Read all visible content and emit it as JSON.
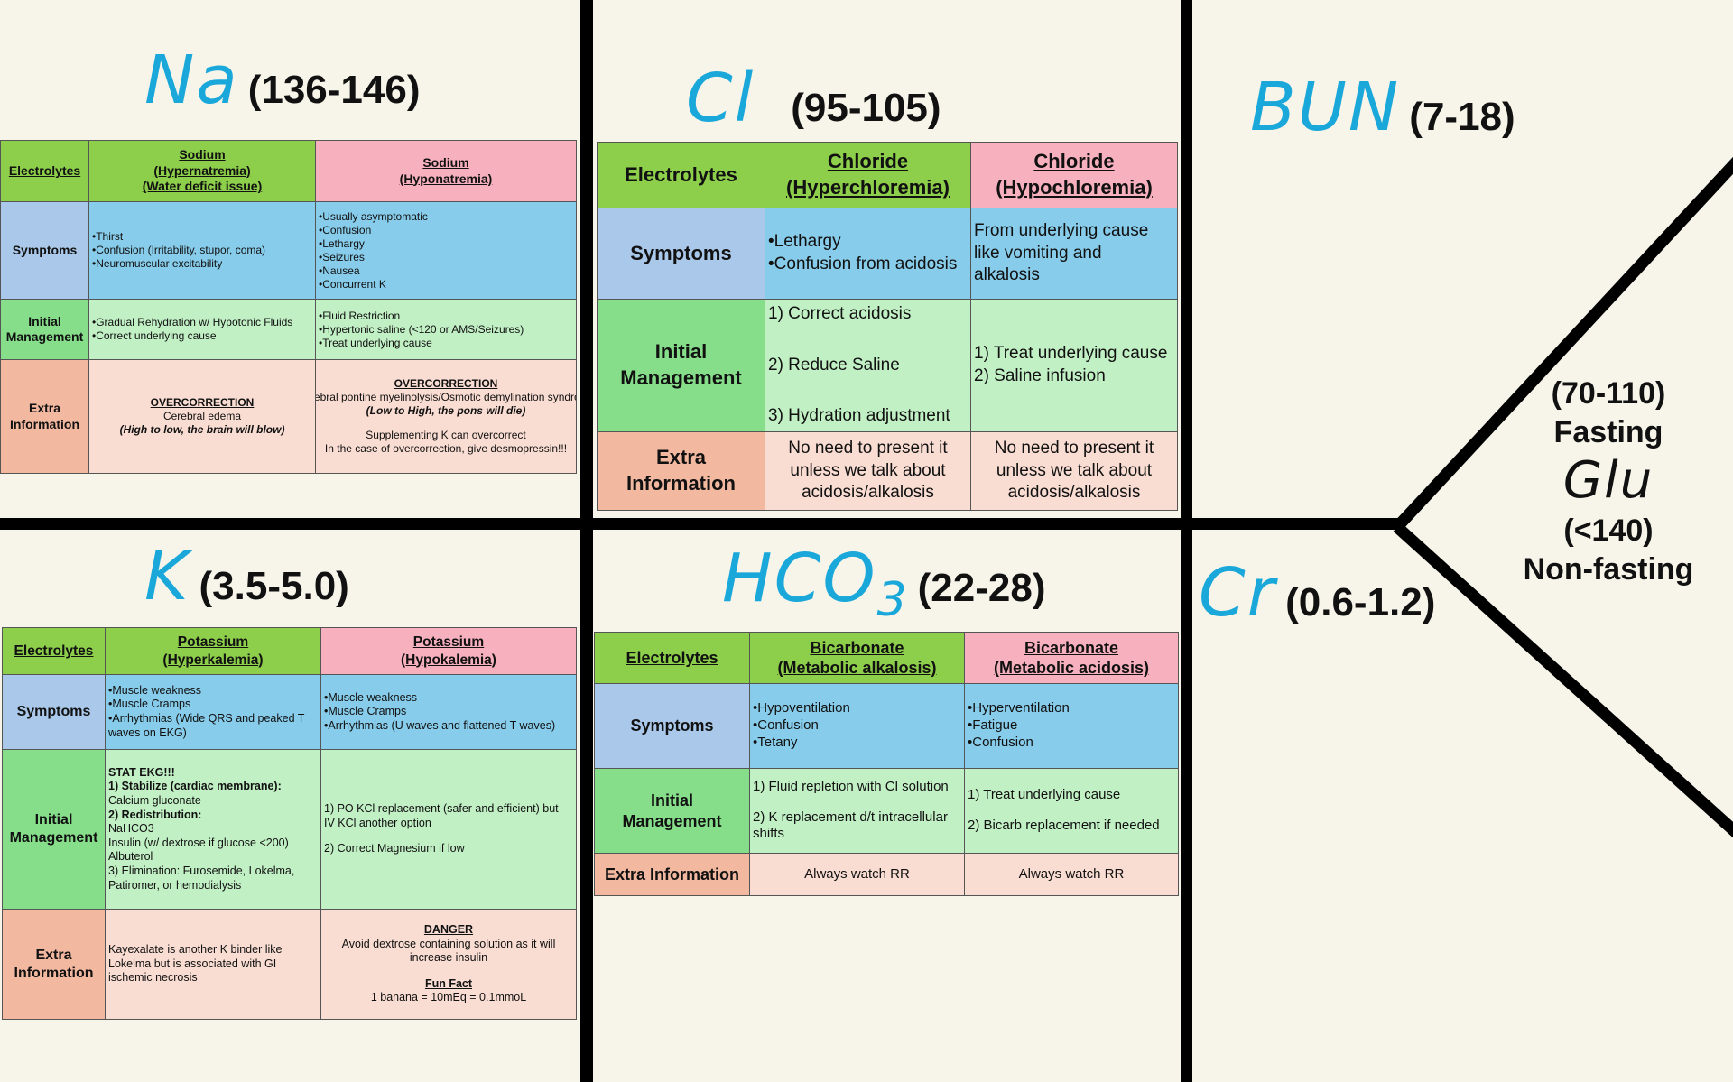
{
  "panels": [
    {
      "symbol": "Na",
      "range": "(136-146)",
      "table": [
        [
          [
            "Electrolytes"
          ],
          [
            "Sodium",
            "(Hypernatremia)",
            "(Water deficit issue)"
          ],
          [
            "Sodium",
            "(Hyponatremia)"
          ]
        ],
        [
          [
            "Symptoms"
          ],
          [
            "•Thirst",
            "•Confusion (Irritability, stupor, coma)",
            "•Neuromuscular excitability"
          ],
          [
            "•Usually asymptomatic",
            "•Confusion",
            "•Lethargy",
            "•Seizures",
            "•Nausea",
            "•Concurrent K"
          ]
        ],
        [
          [
            "Initial",
            "Management"
          ],
          [
            "•Gradual Rehydration w/ Hypotonic Fluids",
            "•Correct underlying cause"
          ],
          [
            "•Fluid Restriction",
            "•Hypertonic saline (<120 or AMS/Seizures)",
            "•Treat underlying cause"
          ]
        ],
        [
          [
            "Extra",
            "Information"
          ],
          [
            "OVERCORRECTION",
            "Cerebral edema",
            "(High to low, the brain will blow)"
          ],
          [
            "OVERCORRECTION",
            "Cerebral pontine myelinolysis/Osmotic demylination syndrome",
            "(Low to High, the pons will die)",
            "Supplementing K can overcorrect",
            "In the case of overcorrection, give desmopressin!!!"
          ]
        ]
      ]
    },
    {
      "symbol": "Cl",
      "range": "(95-105)",
      "table": [
        [
          [
            "Electrolytes"
          ],
          [
            "Chloride",
            "(Hyperchloremia)"
          ],
          [
            "Chloride",
            "(Hypochloremia)"
          ]
        ],
        [
          [
            "Symptoms"
          ],
          [
            "•Lethargy",
            "•Confusion from acidosis"
          ],
          [
            "From underlying cause",
            "like vomiting and",
            "alkalosis"
          ]
        ],
        [
          [
            "Initial",
            "Management"
          ],
          [
            "1) Correct acidosis",
            "2) Reduce Saline",
            "3) Hydration adjustment"
          ],
          [
            "1) Treat underlying cause",
            "2) Saline infusion"
          ]
        ],
        [
          [
            "Extra",
            "Information"
          ],
          [
            "No need to present it",
            "unless we talk about",
            "acidosis/alkalosis"
          ],
          [
            "No need to present it",
            "unless we talk about",
            "acidosis/alkalosis"
          ]
        ]
      ]
    },
    {
      "symbol": "K",
      "range": "(3.5-5.0)",
      "table": [
        [
          [
            "Electrolytes"
          ],
          [
            "Potassium",
            "(Hyperkalemia)"
          ],
          [
            "Potassium",
            "(Hypokalemia)"
          ]
        ],
        [
          [
            "Symptoms"
          ],
          [
            "•Muscle weakness",
            "•Muscle Cramps",
            "•Arrhythmias (Wide QRS and peaked T",
            "waves on EKG)"
          ],
          [
            "•Muscle weakness",
            "•Muscle Cramps",
            "•Arrhythmias (U waves and flattened T waves)"
          ]
        ],
        [
          [
            "Initial",
            "Management"
          ],
          [
            "STAT EKG!!!",
            "1) Stabilize (cardiac membrane):",
            "Calcium gluconate",
            "2) Redistribution:",
            "NaHCO3",
            "Insulin (w/ dextrose if glucose <200)",
            "Albuterol",
            "3) Elimination: Furosemide, Lokelma,",
            "Patiromer, or hemodialysis"
          ],
          [
            "1) PO KCl replacement (safer and efficient) but",
            "IV KCl another option",
            "2) Correct Magnesium if low"
          ]
        ],
        [
          [
            "Extra",
            "Information"
          ],
          [
            "Kayexalate is another K binder like",
            "Lokelma but is associated with GI",
            "ischemic necrosis"
          ],
          [
            "DANGER",
            "Avoid dextrose containing solution as it will",
            "increase insulin",
            "Fun Fact",
            "1 banana = 10mEq = 0.1mmoL"
          ]
        ]
      ]
    },
    {
      "symbol": [
        "HCO",
        "3"
      ],
      "range": "(22-28)",
      "table": [
        [
          [
            "Electrolytes"
          ],
          [
            "Bicarbonate",
            "(Metabolic alkalosis)"
          ],
          [
            "Bicarbonate",
            "(Metabolic acidosis)"
          ]
        ],
        [
          [
            "Symptoms"
          ],
          [
            "•Hypoventilation",
            "•Confusion",
            "•Tetany"
          ],
          [
            "•Hyperventilation",
            "•Fatigue",
            "•Confusion"
          ]
        ],
        [
          [
            "Initial",
            "Management"
          ],
          [
            "1) Fluid repletion with Cl solution",
            "2) K replacement d/t intracellular",
            "shifts"
          ],
          [
            "1) Treat underlying cause",
            "2) Bicarb replacement if needed"
          ]
        ],
        [
          [
            "Extra Information"
          ],
          [
            "Always watch RR"
          ],
          [
            "Always watch RR"
          ]
        ]
      ]
    }
  ],
  "bun": {
    "symbol": "BUN",
    "range": "(7-18)"
  },
  "cr": {
    "symbol": "Cr",
    "range": "(0.6-1.2)"
  },
  "glu": {
    "fasting_range": "(70-110)",
    "fasting": "Fasting",
    "symbol": "Glu",
    "nonfasting_range": "(<140)",
    "nonfasting": "Non-fasting"
  }
}
